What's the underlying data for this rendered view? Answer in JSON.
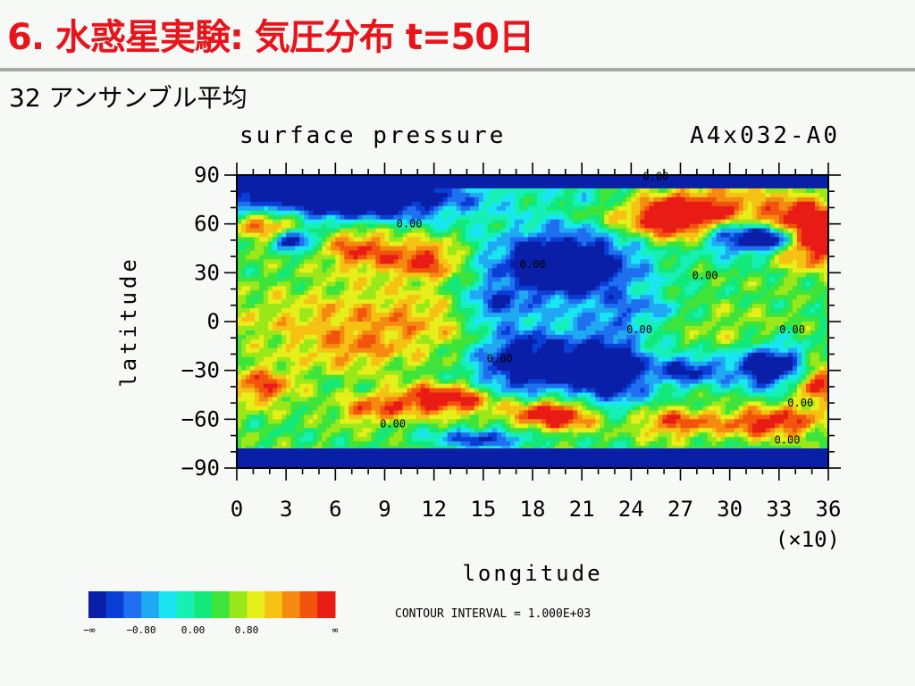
{
  "slide": {
    "title": "6. 水惑星実験: 気圧分布 t=50日",
    "subtitle": "32 アンサンブル平均"
  },
  "colors": {
    "title_red": "#e8141c",
    "scale": [
      "#0a1fa8",
      "#0a3fd6",
      "#1f6ff0",
      "#1ea9f2",
      "#19e6f2",
      "#16f0b4",
      "#13e87a",
      "#3fe43a",
      "#9be81a",
      "#e6ef19",
      "#f5c214",
      "#f58a10",
      "#f2540d",
      "#e81c14"
    ]
  },
  "chart_data": {
    "type": "heatmap",
    "title": "surface pressure",
    "run_label": "A4x032-A0",
    "xlabel": "longitude",
    "ylabel": "latitude",
    "x_multiplier": "(×10)",
    "xlim": [
      0,
      36
    ],
    "ylim": [
      -90,
      90
    ],
    "x_ticks": [
      "0",
      "3",
      "6",
      "9",
      "12",
      "15",
      "18",
      "21",
      "24",
      "27",
      "30",
      "33",
      "36"
    ],
    "y_ticks": [
      "90",
      "60",
      "30",
      "0",
      "−30",
      "−60",
      "−90"
    ],
    "contour_labels": [
      "0.00",
      "0.00",
      "0.00",
      "0.00",
      "0.00",
      "0.00",
      "0.00",
      "0.00",
      "0.00",
      "0.00"
    ],
    "contour_interval": "CONTOUR INTERVAL = 1.000E+03",
    "colorbar_labels": [
      "−∞",
      "−0.80",
      "0.00",
      "0.80",
      "∞"
    ]
  }
}
